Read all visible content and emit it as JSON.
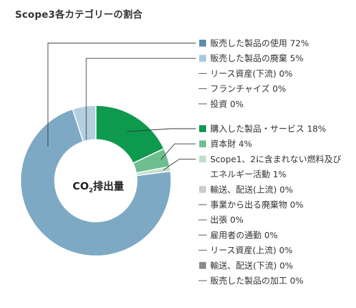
{
  "chart_data": {
    "type": "pie",
    "title": "Scope3各カテゴリーの割合",
    "center_label": {
      "prefix": "CO",
      "subscript": "2",
      "suffix": "排出量"
    },
    "slices": [
      {
        "label": "購入した製品・サービス",
        "value": 18,
        "value_label": "18%",
        "color": "#0e9a4e"
      },
      {
        "label": "資本財",
        "value": 4,
        "value_label": "4%",
        "color": "#6dbf8e"
      },
      {
        "label": "Scope1、2に含まれない燃料及び",
        "label_line2": "エネルギー活動",
        "value": 1,
        "value_label": "1%",
        "color": "#bfe0c9"
      },
      {
        "label": "輸送、配送(上流)",
        "value": 0,
        "value_label": "0%",
        "color": "#cccccc"
      },
      {
        "label": "事業から出る廃棄物",
        "value": 0,
        "value_label": "0%",
        "color": null
      },
      {
        "label": "出張",
        "value": 0,
        "value_label": "0%",
        "color": null
      },
      {
        "label": "雇用者の通勤",
        "value": 0,
        "value_label": "0%",
        "color": null
      },
      {
        "label": "リース資産(上流)",
        "value": 0,
        "value_label": "0%",
        "color": null
      },
      {
        "label": "輸送、配送(下流)",
        "value": 0,
        "value_label": "0%",
        "color": "#8a8a8a"
      },
      {
        "label": "販売した製品の加工",
        "value": 0,
        "value_label": "0%",
        "color": null
      },
      {
        "label": "販売した製品の使用",
        "value": 72,
        "value_label": "72%",
        "color": "#7ea9c4"
      },
      {
        "label": "販売した製品の廃棄",
        "value": 5,
        "value_label": "5%",
        "color": "#b3cfe0"
      },
      {
        "label": "リース資産(下流)",
        "value": 0,
        "value_label": "0%",
        "color": null
      },
      {
        "label": "フランチャイズ",
        "value": 0,
        "value_label": "0%",
        "color": null
      },
      {
        "label": "投資",
        "value": 0,
        "value_label": "0%",
        "color": null
      }
    ],
    "legend_order": [
      10,
      11,
      12,
      13,
      14,
      0,
      1,
      2,
      3,
      4,
      5,
      6,
      7,
      8,
      9
    ],
    "legend_legend_swatch_colors": {
      "販売した製品の使用": "#5b8db0",
      "販売した製品の廃棄": "#a9c9dd"
    }
  }
}
